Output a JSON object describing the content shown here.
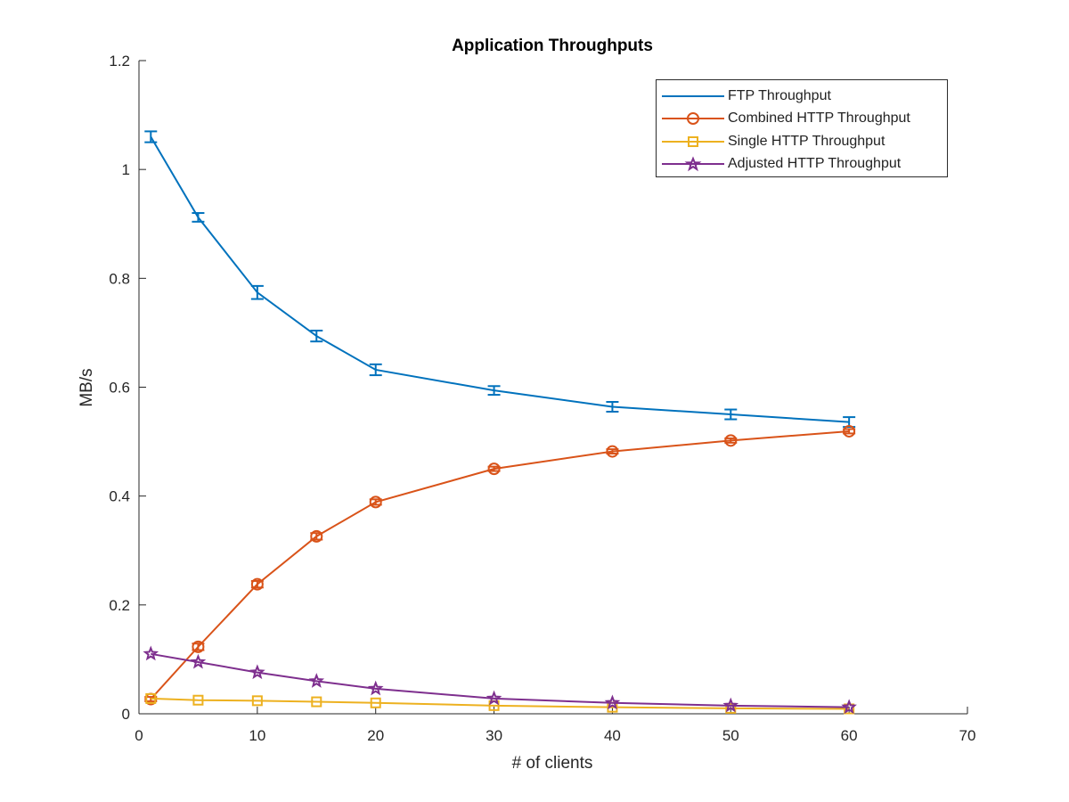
{
  "chart_data": {
    "type": "line",
    "title": "Application Throughputs",
    "xlabel": "# of clients",
    "ylabel": "MB/s",
    "xlim": [
      0,
      70
    ],
    "ylim": [
      0,
      1.2
    ],
    "xticks": [
      0,
      10,
      20,
      30,
      40,
      50,
      60,
      70
    ],
    "yticks": [
      0,
      0.2,
      0.4,
      0.6,
      0.8,
      1,
      1.2
    ],
    "xtick_labels": [
      "0",
      "10",
      "20",
      "30",
      "40",
      "50",
      "60",
      "70"
    ],
    "ytick_labels": [
      "0",
      "0.2",
      "0.4",
      "0.6",
      "0.8",
      "1",
      "1.2"
    ],
    "grid": false,
    "legend_position": "top-right",
    "x": [
      1,
      5,
      10,
      15,
      20,
      30,
      40,
      50,
      60
    ],
    "series": [
      {
        "name": "FTP Throughput",
        "color": "#0072BD",
        "marker": "none",
        "values": [
          1.06,
          0.912,
          0.774,
          0.694,
          0.632,
          0.594,
          0.564,
          0.55,
          0.536
        ],
        "errors": [
          0.01,
          0.008,
          0.012,
          0.01,
          0.01,
          0.008,
          0.009,
          0.009,
          0.009
        ]
      },
      {
        "name": "Combined HTTP Throughput",
        "color": "#D95319",
        "marker": "circle",
        "values": [
          0.027,
          0.123,
          0.238,
          0.326,
          0.389,
          0.45,
          0.482,
          0.502,
          0.519
        ],
        "errors": [
          0.004,
          0.006,
          0.006,
          0.006,
          0.005,
          0.004,
          0.004,
          0.004,
          0.004
        ]
      },
      {
        "name": "Single HTTP Throughput",
        "color": "#EDB120",
        "marker": "square",
        "values": [
          0.028,
          0.025,
          0.024,
          0.022,
          0.02,
          0.015,
          0.012,
          0.01,
          0.009
        ]
      },
      {
        "name": "Adjusted HTTP Throughput",
        "color": "#7E2F8E",
        "marker": "star",
        "values": [
          0.11,
          0.095,
          0.076,
          0.06,
          0.046,
          0.028,
          0.02,
          0.015,
          0.012
        ]
      }
    ]
  }
}
